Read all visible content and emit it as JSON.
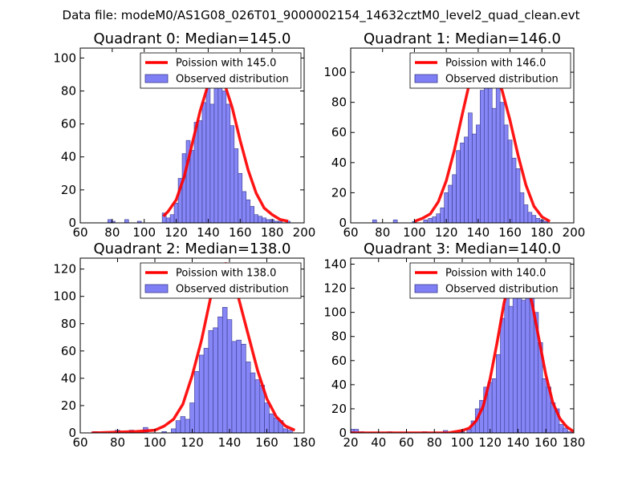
{
  "figure_title": "Data file: modeM0/AS1G08_026T01_9000002154_14632cztM0_level2_quad_clean.evt",
  "colors": {
    "observed_fill": "#7f7ff5",
    "observed_edge": "#3a3a8c",
    "poisson_line": "#ff0000"
  },
  "chart_data": [
    {
      "type": "bar",
      "title": "Quadrant 0: Median=145.0",
      "xlim": [
        60,
        200
      ],
      "ylim": [
        0,
        106
      ],
      "xticks": [
        60,
        80,
        100,
        120,
        140,
        160,
        180,
        200
      ],
      "yticks": [
        0,
        20,
        40,
        60,
        80,
        100
      ],
      "legend_position": "top-right",
      "legend": [
        "Poission with 145.0",
        "Observed distribution"
      ],
      "histogram": {
        "name": "Observed distribution",
        "bin_width": 2.5,
        "bins": [
          [
            78.5,
            2
          ],
          [
            80.5,
            1
          ],
          [
            89,
            2
          ],
          [
            97,
            1
          ],
          [
            112.5,
            6
          ],
          [
            115,
            3
          ],
          [
            117.5,
            5
          ],
          [
            120,
            12
          ],
          [
            122.5,
            27
          ],
          [
            125,
            42
          ],
          [
            127.5,
            50
          ],
          [
            130,
            44
          ],
          [
            132.5,
            61
          ],
          [
            135,
            62
          ],
          [
            137.5,
            73
          ],
          [
            140,
            82
          ],
          [
            142.5,
            72
          ],
          [
            145,
            89
          ],
          [
            147.5,
            98
          ],
          [
            150,
            80
          ],
          [
            152.5,
            72
          ],
          [
            155,
            59
          ],
          [
            157.5,
            45
          ],
          [
            160,
            30
          ],
          [
            162.5,
            19
          ],
          [
            165,
            14
          ],
          [
            167.5,
            10
          ],
          [
            170,
            5
          ],
          [
            172.5,
            4
          ],
          [
            175,
            3
          ],
          [
            177.5,
            2
          ],
          [
            180,
            2
          ],
          [
            182.5,
            1
          ],
          [
            185,
            1
          ],
          [
            190,
            1
          ]
        ]
      },
      "poisson_curve": {
        "name": "Poission with 145.0",
        "x": [
          112,
          115,
          120,
          125,
          130,
          135,
          140,
          145,
          150,
          155,
          160,
          165,
          170,
          175,
          180,
          185,
          190
        ],
        "y": [
          4,
          7,
          14,
          28,
          48,
          68,
          84,
          90,
          85,
          70,
          50,
          32,
          18,
          9,
          5,
          2,
          1
        ]
      }
    },
    {
      "type": "bar",
      "title": "Quadrant 1: Median=146.0",
      "xlim": [
        60,
        200
      ],
      "ylim": [
        0,
        116
      ],
      "xticks": [
        60,
        80,
        100,
        120,
        140,
        160,
        180,
        200
      ],
      "yticks": [
        0,
        20,
        40,
        60,
        80,
        100
      ],
      "legend_position": "top-right",
      "legend": [
        "Poission with 146.0",
        "Observed distribution"
      ],
      "histogram": {
        "name": "Observed distribution",
        "bin_width": 2.5,
        "bins": [
          [
            75,
            2
          ],
          [
            88,
            2
          ],
          [
            100,
            1
          ],
          [
            107,
            2
          ],
          [
            110,
            3
          ],
          [
            112.5,
            4
          ],
          [
            115,
            6
          ],
          [
            117.5,
            10
          ],
          [
            120,
            20
          ],
          [
            122.5,
            25
          ],
          [
            125,
            32
          ],
          [
            127.5,
            48
          ],
          [
            130,
            53
          ],
          [
            132.5,
            57
          ],
          [
            135,
            73
          ],
          [
            137.5,
            59
          ],
          [
            140,
            65
          ],
          [
            142.5,
            88
          ],
          [
            145,
            108
          ],
          [
            147.5,
            90
          ],
          [
            150,
            76
          ],
          [
            152.5,
            93
          ],
          [
            155,
            80
          ],
          [
            157.5,
            65
          ],
          [
            160,
            55
          ],
          [
            162.5,
            43
          ],
          [
            165,
            36
          ],
          [
            167.5,
            20
          ],
          [
            170,
            12
          ],
          [
            172.5,
            7
          ],
          [
            175,
            5
          ],
          [
            177.5,
            3
          ],
          [
            180,
            2
          ],
          [
            182.5,
            1
          ]
        ]
      },
      "poisson_curve": {
        "name": "Poission with 146.0",
        "x": [
          100,
          105,
          110,
          115,
          120,
          125,
          130,
          135,
          140,
          145,
          150,
          155,
          160,
          165,
          170,
          175,
          180,
          185
        ],
        "y": [
          1,
          3,
          6,
          14,
          28,
          48,
          72,
          95,
          108,
          111,
          102,
          88,
          68,
          45,
          25,
          11,
          4,
          1
        ]
      }
    },
    {
      "type": "bar",
      "title": "Quadrant 2: Median=138.0",
      "xlim": [
        60,
        180
      ],
      "ylim": [
        0,
        128
      ],
      "xticks": [
        60,
        80,
        100,
        120,
        140,
        160,
        180
      ],
      "yticks": [
        0,
        20,
        40,
        60,
        80,
        100,
        120
      ],
      "legend_position": "top-right",
      "legend": [
        "Poission with 138.0",
        "Observed distribution"
      ],
      "histogram": {
        "name": "Observed distribution",
        "bin_width": 2.5,
        "bins": [
          [
            68,
            1
          ],
          [
            80,
            2
          ],
          [
            87.5,
            2
          ],
          [
            95,
            4
          ],
          [
            105,
            1
          ],
          [
            110,
            3
          ],
          [
            112.5,
            9
          ],
          [
            115,
            12
          ],
          [
            117.5,
            10
          ],
          [
            120,
            22
          ],
          [
            122.5,
            45
          ],
          [
            125,
            57
          ],
          [
            127.5,
            62
          ],
          [
            130,
            75
          ],
          [
            132.5,
            77
          ],
          [
            135,
            85
          ],
          [
            137.5,
            92
          ],
          [
            140,
            83
          ],
          [
            142.5,
            67
          ],
          [
            145,
            68
          ],
          [
            147.5,
            65
          ],
          [
            150,
            52
          ],
          [
            152.5,
            44
          ],
          [
            155,
            39
          ],
          [
            157.5,
            35
          ],
          [
            160,
            22
          ],
          [
            162.5,
            14
          ],
          [
            165,
            11
          ],
          [
            167.5,
            9
          ],
          [
            170,
            3
          ],
          [
            172.5,
            2
          ]
        ]
      },
      "poisson_curve": {
        "name": "Poission with 138.0",
        "x": [
          66,
          90,
          100,
          105,
          110,
          115,
          120,
          125,
          130,
          135,
          138,
          140,
          145,
          150,
          155,
          160,
          165,
          170,
          175
        ],
        "y": [
          0,
          1,
          2,
          5,
          10,
          21,
          42,
          68,
          100,
          121,
          124,
          120,
          98,
          72,
          46,
          25,
          12,
          5,
          2
        ]
      }
    },
    {
      "type": "bar",
      "title": "Quadrant 3: Median=140.0",
      "xlim": [
        20,
        180
      ],
      "ylim": [
        0,
        145
      ],
      "xticks": [
        20,
        40,
        60,
        80,
        100,
        120,
        140,
        160,
        180
      ],
      "yticks": [
        0,
        20,
        40,
        60,
        80,
        100,
        120,
        140
      ],
      "legend_position": "top-right",
      "legend": [
        "Poission with 140.0",
        "Observed distribution"
      ],
      "histogram": {
        "name": "Observed distribution",
        "bin_width": 3.3,
        "bins": [
          [
            21,
            3
          ],
          [
            24,
            3
          ],
          [
            28,
            1
          ],
          [
            48,
            1
          ],
          [
            73,
            1
          ],
          [
            88,
            2
          ],
          [
            100,
            1
          ],
          [
            105,
            3
          ],
          [
            108,
            10
          ],
          [
            111,
            20
          ],
          [
            114,
            27
          ],
          [
            117,
            38
          ],
          [
            120,
            42
          ],
          [
            123,
            45
          ],
          [
            126,
            65
          ],
          [
            129,
            95
          ],
          [
            132,
            115
          ],
          [
            135,
            105
          ],
          [
            138,
            125
          ],
          [
            141,
            132
          ],
          [
            144,
            110
          ],
          [
            147,
            140
          ],
          [
            150,
            133
          ],
          [
            153,
            100
          ],
          [
            156,
            75
          ],
          [
            159,
            45
          ],
          [
            162,
            38
          ],
          [
            165,
            25
          ],
          [
            168,
            20
          ],
          [
            171,
            7
          ],
          [
            174,
            4
          ],
          [
            177,
            1
          ]
        ]
      },
      "poisson_curve": {
        "name": "Poission with 140.0",
        "x": [
          20,
          90,
          100,
          105,
          110,
          115,
          120,
          125,
          130,
          135,
          140,
          145,
          150,
          155,
          160,
          165,
          170,
          175,
          180
        ],
        "y": [
          0,
          0,
          2,
          4,
          10,
          22,
          45,
          75,
          108,
          131,
          138,
          130,
          108,
          78,
          48,
          25,
          12,
          5,
          1
        ]
      }
    }
  ]
}
